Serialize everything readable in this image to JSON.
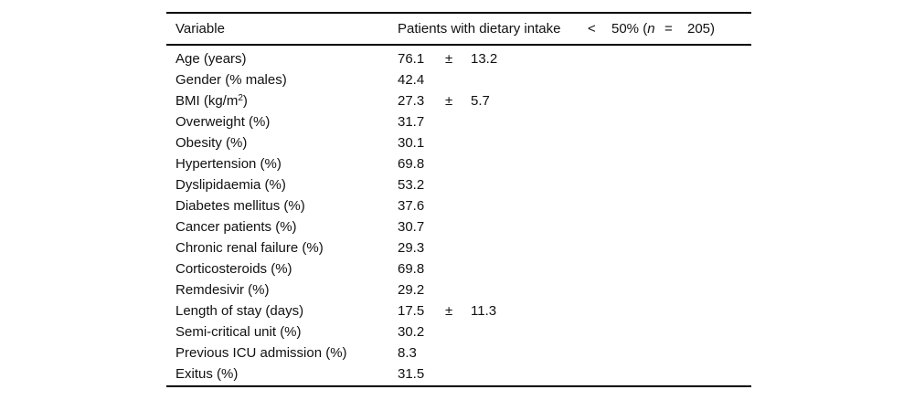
{
  "table": {
    "header": {
      "variable": "Variable",
      "group": {
        "seg1": "Patients with dietary intake",
        "lt": "<",
        "pct_open": "50% (",
        "n_italic": "n",
        "eq": "=",
        "count_close": "205)"
      }
    },
    "rows": [
      {
        "label": "Age (years)",
        "label_sup": "",
        "label_suffix": "",
        "value": "76.1",
        "pm": "±",
        "sd": "13.2"
      },
      {
        "label": "Gender (% males)",
        "label_sup": "",
        "label_suffix": "",
        "value": "42.4",
        "pm": "",
        "sd": ""
      },
      {
        "label": "BMI (kg/m",
        "label_sup": "2",
        "label_suffix": ")",
        "value": "27.3",
        "pm": "±",
        "sd": "5.7"
      },
      {
        "label": "Overweight (%)",
        "label_sup": "",
        "label_suffix": "",
        "value": "31.7",
        "pm": "",
        "sd": ""
      },
      {
        "label": "Obesity (%)",
        "label_sup": "",
        "label_suffix": "",
        "value": "30.1",
        "pm": "",
        "sd": ""
      },
      {
        "label": "Hypertension (%)",
        "label_sup": "",
        "label_suffix": "",
        "value": "69.8",
        "pm": "",
        "sd": ""
      },
      {
        "label": "Dyslipidaemia (%)",
        "label_sup": "",
        "label_suffix": "",
        "value": "53.2",
        "pm": "",
        "sd": ""
      },
      {
        "label": "Diabetes mellitus (%)",
        "label_sup": "",
        "label_suffix": "",
        "value": "37.6",
        "pm": "",
        "sd": ""
      },
      {
        "label": "Cancer patients (%)",
        "label_sup": "",
        "label_suffix": "",
        "value": "30.7",
        "pm": "",
        "sd": ""
      },
      {
        "label": "Chronic renal failure (%)",
        "label_sup": "",
        "label_suffix": "",
        "value": "29.3",
        "pm": "",
        "sd": ""
      },
      {
        "label": "Corticosteroids (%)",
        "label_sup": "",
        "label_suffix": "",
        "value": "69.8",
        "pm": "",
        "sd": ""
      },
      {
        "label": "Remdesivir (%)",
        "label_sup": "",
        "label_suffix": "",
        "value": "29.2",
        "pm": "",
        "sd": ""
      },
      {
        "label": "Length of stay (days)",
        "label_sup": "",
        "label_suffix": "",
        "value": "17.5",
        "pm": "±",
        "sd": "11.3"
      },
      {
        "label": "Semi-critical unit (%)",
        "label_sup": "",
        "label_suffix": "",
        "value": "30.2",
        "pm": "",
        "sd": ""
      },
      {
        "label": "Previous ICU admission (%)",
        "label_sup": "",
        "label_suffix": "",
        "value": "8.3",
        "pm": "",
        "sd": ""
      },
      {
        "label": "Exitus (%)",
        "label_sup": "",
        "label_suffix": "",
        "value": "31.5",
        "pm": "",
        "sd": ""
      }
    ]
  }
}
